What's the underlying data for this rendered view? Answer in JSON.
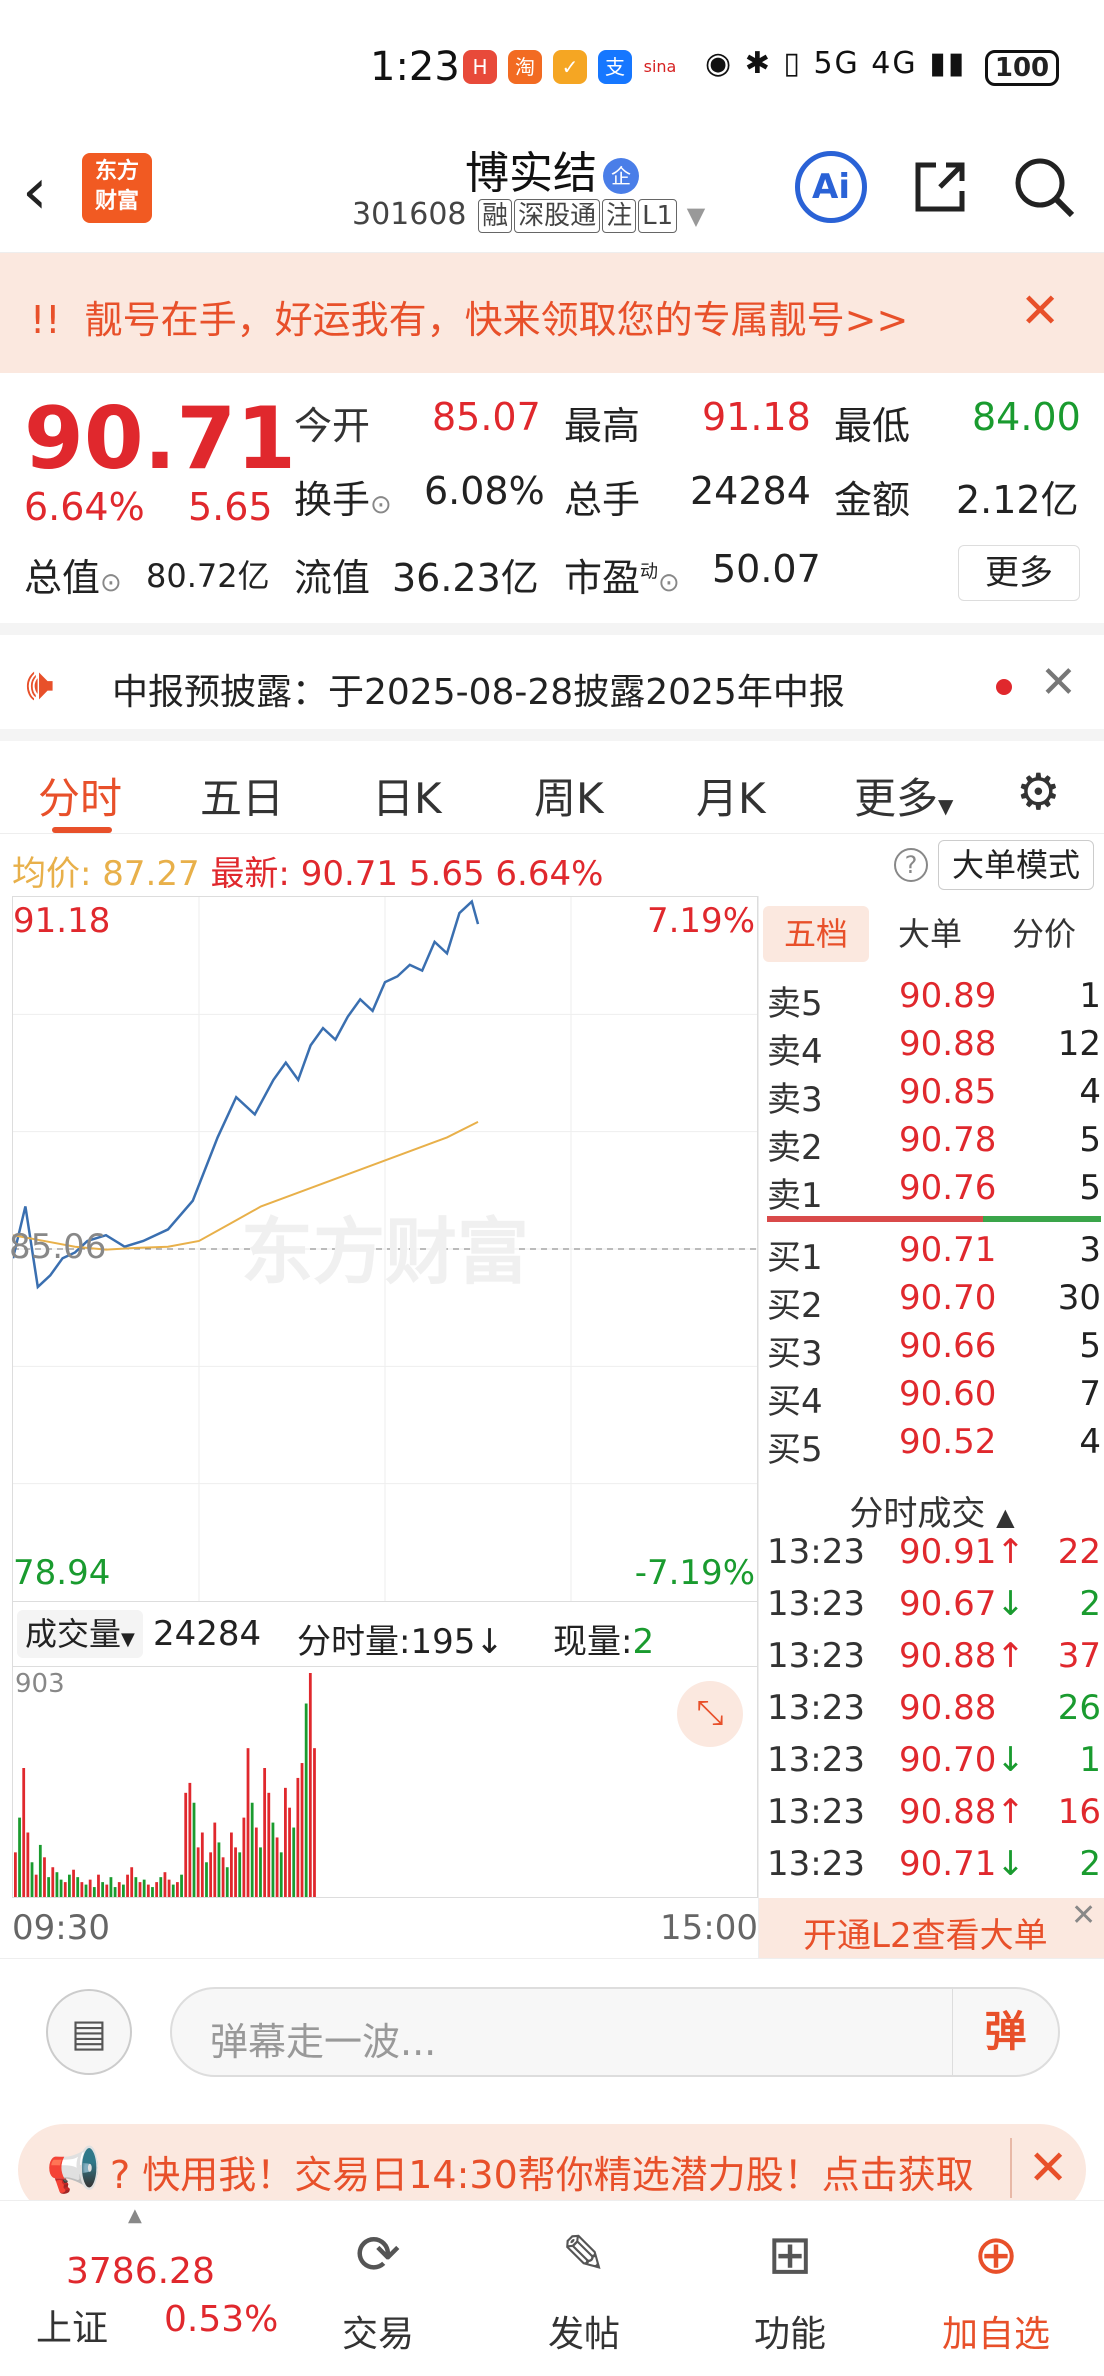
{
  "status_bar": {
    "time": "1:23",
    "network": "5G 4G",
    "battery": "100"
  },
  "header": {
    "back_icon": "chevron-left",
    "logo_line1": "东方",
    "logo_line2": "财富",
    "stock_name": "博实结",
    "enterprise_badge": "企",
    "stock_code": "301608",
    "tags": [
      "融",
      "深股通",
      "注",
      "L1"
    ],
    "ai_label": "Ai"
  },
  "promo_banner": {
    "prefix": "!!",
    "text": "靓号在手，好运我有，快来领取您的专属靓号>>"
  },
  "quote": {
    "price": "90.71",
    "change_pct": "6.64%",
    "change": "5.65",
    "open_label": "今开",
    "open": "85.07",
    "high_label": "最高",
    "high": "91.18",
    "low_label": "最低",
    "low": "84.00",
    "turnover_label": "换手",
    "turnover": "6.08%",
    "volume_label": "总手",
    "volume": "24284",
    "amount_label": "金额",
    "amount": "2.12亿",
    "mktcap_label": "总值",
    "mktcap": "80.72亿",
    "float_label": "流值",
    "float_cap": "36.23亿",
    "pe_label": "市盈",
    "pe_sup": "动",
    "pe": "50.07",
    "more_label": "更多"
  },
  "notice": {
    "text": "中报预披露：于2025-08-28披露2025年中报"
  },
  "tabs": [
    "分时",
    "五日",
    "日K",
    "周K",
    "月K",
    "更多"
  ],
  "avg_row": {
    "avg_label": "均价:",
    "avg": "87.27",
    "latest_label": "最新:",
    "latest": "90.71",
    "change": "5.65",
    "pct": "6.64%",
    "bigorder_label": "大单模式"
  },
  "chart_axes": {
    "top_price": "91.18",
    "top_pct": "7.19%",
    "mid_price": "85.06",
    "bottom_price": "78.94",
    "bottom_pct": "-7.19%",
    "watermark": "东方财富"
  },
  "chart_data": {
    "type": "line",
    "x_range": [
      "09:30",
      "15:00"
    ],
    "ylim": [
      78.94,
      91.18
    ],
    "prev_close": 85.06,
    "series": [
      {
        "name": "最新",
        "color": "#3a6fb0",
        "x": [
          0,
          4,
          8,
          12,
          16,
          20,
          24,
          30,
          36,
          42,
          50,
          58,
          66,
          72,
          78,
          84,
          88,
          92,
          96,
          100,
          104,
          108,
          112,
          116,
          120,
          124,
          128,
          132,
          136,
          140,
          144,
          148,
          150
        ],
        "y": [
          84.9,
          85.8,
          84.4,
          84.6,
          84.9,
          85.0,
          85.2,
          85.3,
          85.1,
          85.2,
          85.4,
          85.9,
          87.0,
          87.7,
          87.4,
          88.0,
          88.3,
          88.0,
          88.6,
          88.9,
          88.7,
          89.1,
          89.4,
          89.2,
          89.7,
          89.8,
          90.0,
          89.9,
          90.4,
          90.2,
          90.9,
          91.1,
          90.71
        ]
      },
      {
        "name": "均价",
        "color": "#e8b04a",
        "x": [
          0,
          10,
          20,
          30,
          40,
          50,
          60,
          70,
          80,
          90,
          100,
          110,
          120,
          130,
          140,
          150
        ],
        "y": [
          85.3,
          85.2,
          85.1,
          85.05,
          85.08,
          85.1,
          85.2,
          85.5,
          85.8,
          86.0,
          86.2,
          86.4,
          86.6,
          86.8,
          87.0,
          87.27
        ]
      }
    ]
  },
  "volume_bar": {
    "selector_label": "成交量",
    "total": "24284",
    "tick_vol_label": "分时量:",
    "tick_vol": "195↓",
    "cur_label": "现量:",
    "cur": "2",
    "max_label": "903"
  },
  "volume_chart_data": {
    "type": "bar",
    "ylim": [
      0,
      903
    ],
    "values": [
      180,
      320,
      520,
      260,
      140,
      90,
      210,
      160,
      80,
      120,
      100,
      70,
      60,
      90,
      110,
      80,
      60,
      50,
      70,
      40,
      90,
      60,
      50,
      80,
      40,
      60,
      50,
      90,
      120,
      80,
      60,
      70,
      50,
      40,
      60,
      80,
      100,
      70,
      50,
      60,
      90,
      420,
      460,
      380,
      200,
      260,
      140,
      180,
      300,
      220,
      160,
      120,
      260,
      200,
      180,
      320,
      600,
      380,
      280,
      200,
      520,
      420,
      300,
      240,
      180,
      440,
      360,
      280,
      480,
      540,
      780,
      903,
      600
    ],
    "colors": [
      "r",
      "g",
      "r",
      "r",
      "g",
      "r",
      "g",
      "r",
      "g",
      "r",
      "g",
      "g",
      "r",
      "g",
      "r",
      "g",
      "r",
      "g",
      "r",
      "g",
      "r",
      "g",
      "r",
      "g",
      "g",
      "r",
      "g",
      "r",
      "r",
      "g",
      "r",
      "g",
      "r",
      "g",
      "r",
      "g",
      "r",
      "r",
      "g",
      "r",
      "g",
      "r",
      "r",
      "g",
      "r",
      "r",
      "g",
      "r",
      "r",
      "g",
      "r",
      "g",
      "r",
      "r",
      "g",
      "r",
      "r",
      "g",
      "r",
      "g",
      "r",
      "r",
      "g",
      "r",
      "g",
      "r",
      "r",
      "g",
      "r",
      "r",
      "g",
      "r",
      "r"
    ]
  },
  "time_axis": {
    "start": "09:30",
    "end": "15:00"
  },
  "order_book": {
    "tabs": [
      "五档",
      "大单",
      "分价"
    ],
    "asks": [
      {
        "label": "卖5",
        "price": "90.89",
        "vol": "1"
      },
      {
        "label": "卖4",
        "price": "90.88",
        "vol": "12"
      },
      {
        "label": "卖3",
        "price": "90.85",
        "vol": "4"
      },
      {
        "label": "卖2",
        "price": "90.78",
        "vol": "5"
      },
      {
        "label": "卖1",
        "price": "90.76",
        "vol": "5"
      }
    ],
    "bids": [
      {
        "label": "买1",
        "price": "90.71",
        "vol": "3"
      },
      {
        "label": "买2",
        "price": "90.70",
        "vol": "30"
      },
      {
        "label": "买3",
        "price": "90.66",
        "vol": "5"
      },
      {
        "label": "买4",
        "price": "90.60",
        "vol": "7"
      },
      {
        "label": "买5",
        "price": "90.52",
        "vol": "4"
      }
    ],
    "ticks_title": "分时成交",
    "ticks": [
      {
        "time": "13:23",
        "price": "90.91",
        "dir": "↑",
        "vol": "22",
        "color": "red"
      },
      {
        "time": "13:23",
        "price": "90.67",
        "dir": "↓",
        "vol": "2",
        "color": "green"
      },
      {
        "time": "13:23",
        "price": "90.88",
        "dir": "↑",
        "vol": "37",
        "color": "red"
      },
      {
        "time": "13:23",
        "price": "90.88",
        "dir": "",
        "vol": "26",
        "color": "green"
      },
      {
        "time": "13:23",
        "price": "90.70",
        "dir": "↓",
        "vol": "1",
        "color": "green"
      },
      {
        "time": "13:23",
        "price": "90.88",
        "dir": "↑",
        "vol": "16",
        "color": "red"
      },
      {
        "time": "13:23",
        "price": "90.71",
        "dir": "↓",
        "vol": "2",
        "color": "green"
      }
    ],
    "l2_text": "开通L2查看大单"
  },
  "danmu": {
    "placeholder": "弹幕走一波...",
    "send_label": "弹"
  },
  "ad_strip": {
    "text": "? 快用我！交易日14:30帮你精选潜力股！点击获取"
  },
  "bottom_nav": {
    "index_value": "3786.28",
    "index_name": "上证",
    "index_pct": "0.53%",
    "items": [
      "交易",
      "发帖",
      "功能",
      "加自选"
    ]
  },
  "colors": {
    "up": "#e0282d",
    "down": "#1a9b2f",
    "accent": "#e8502a",
    "price_line": "#3a6fb0",
    "avg_line": "#e8b04a"
  }
}
